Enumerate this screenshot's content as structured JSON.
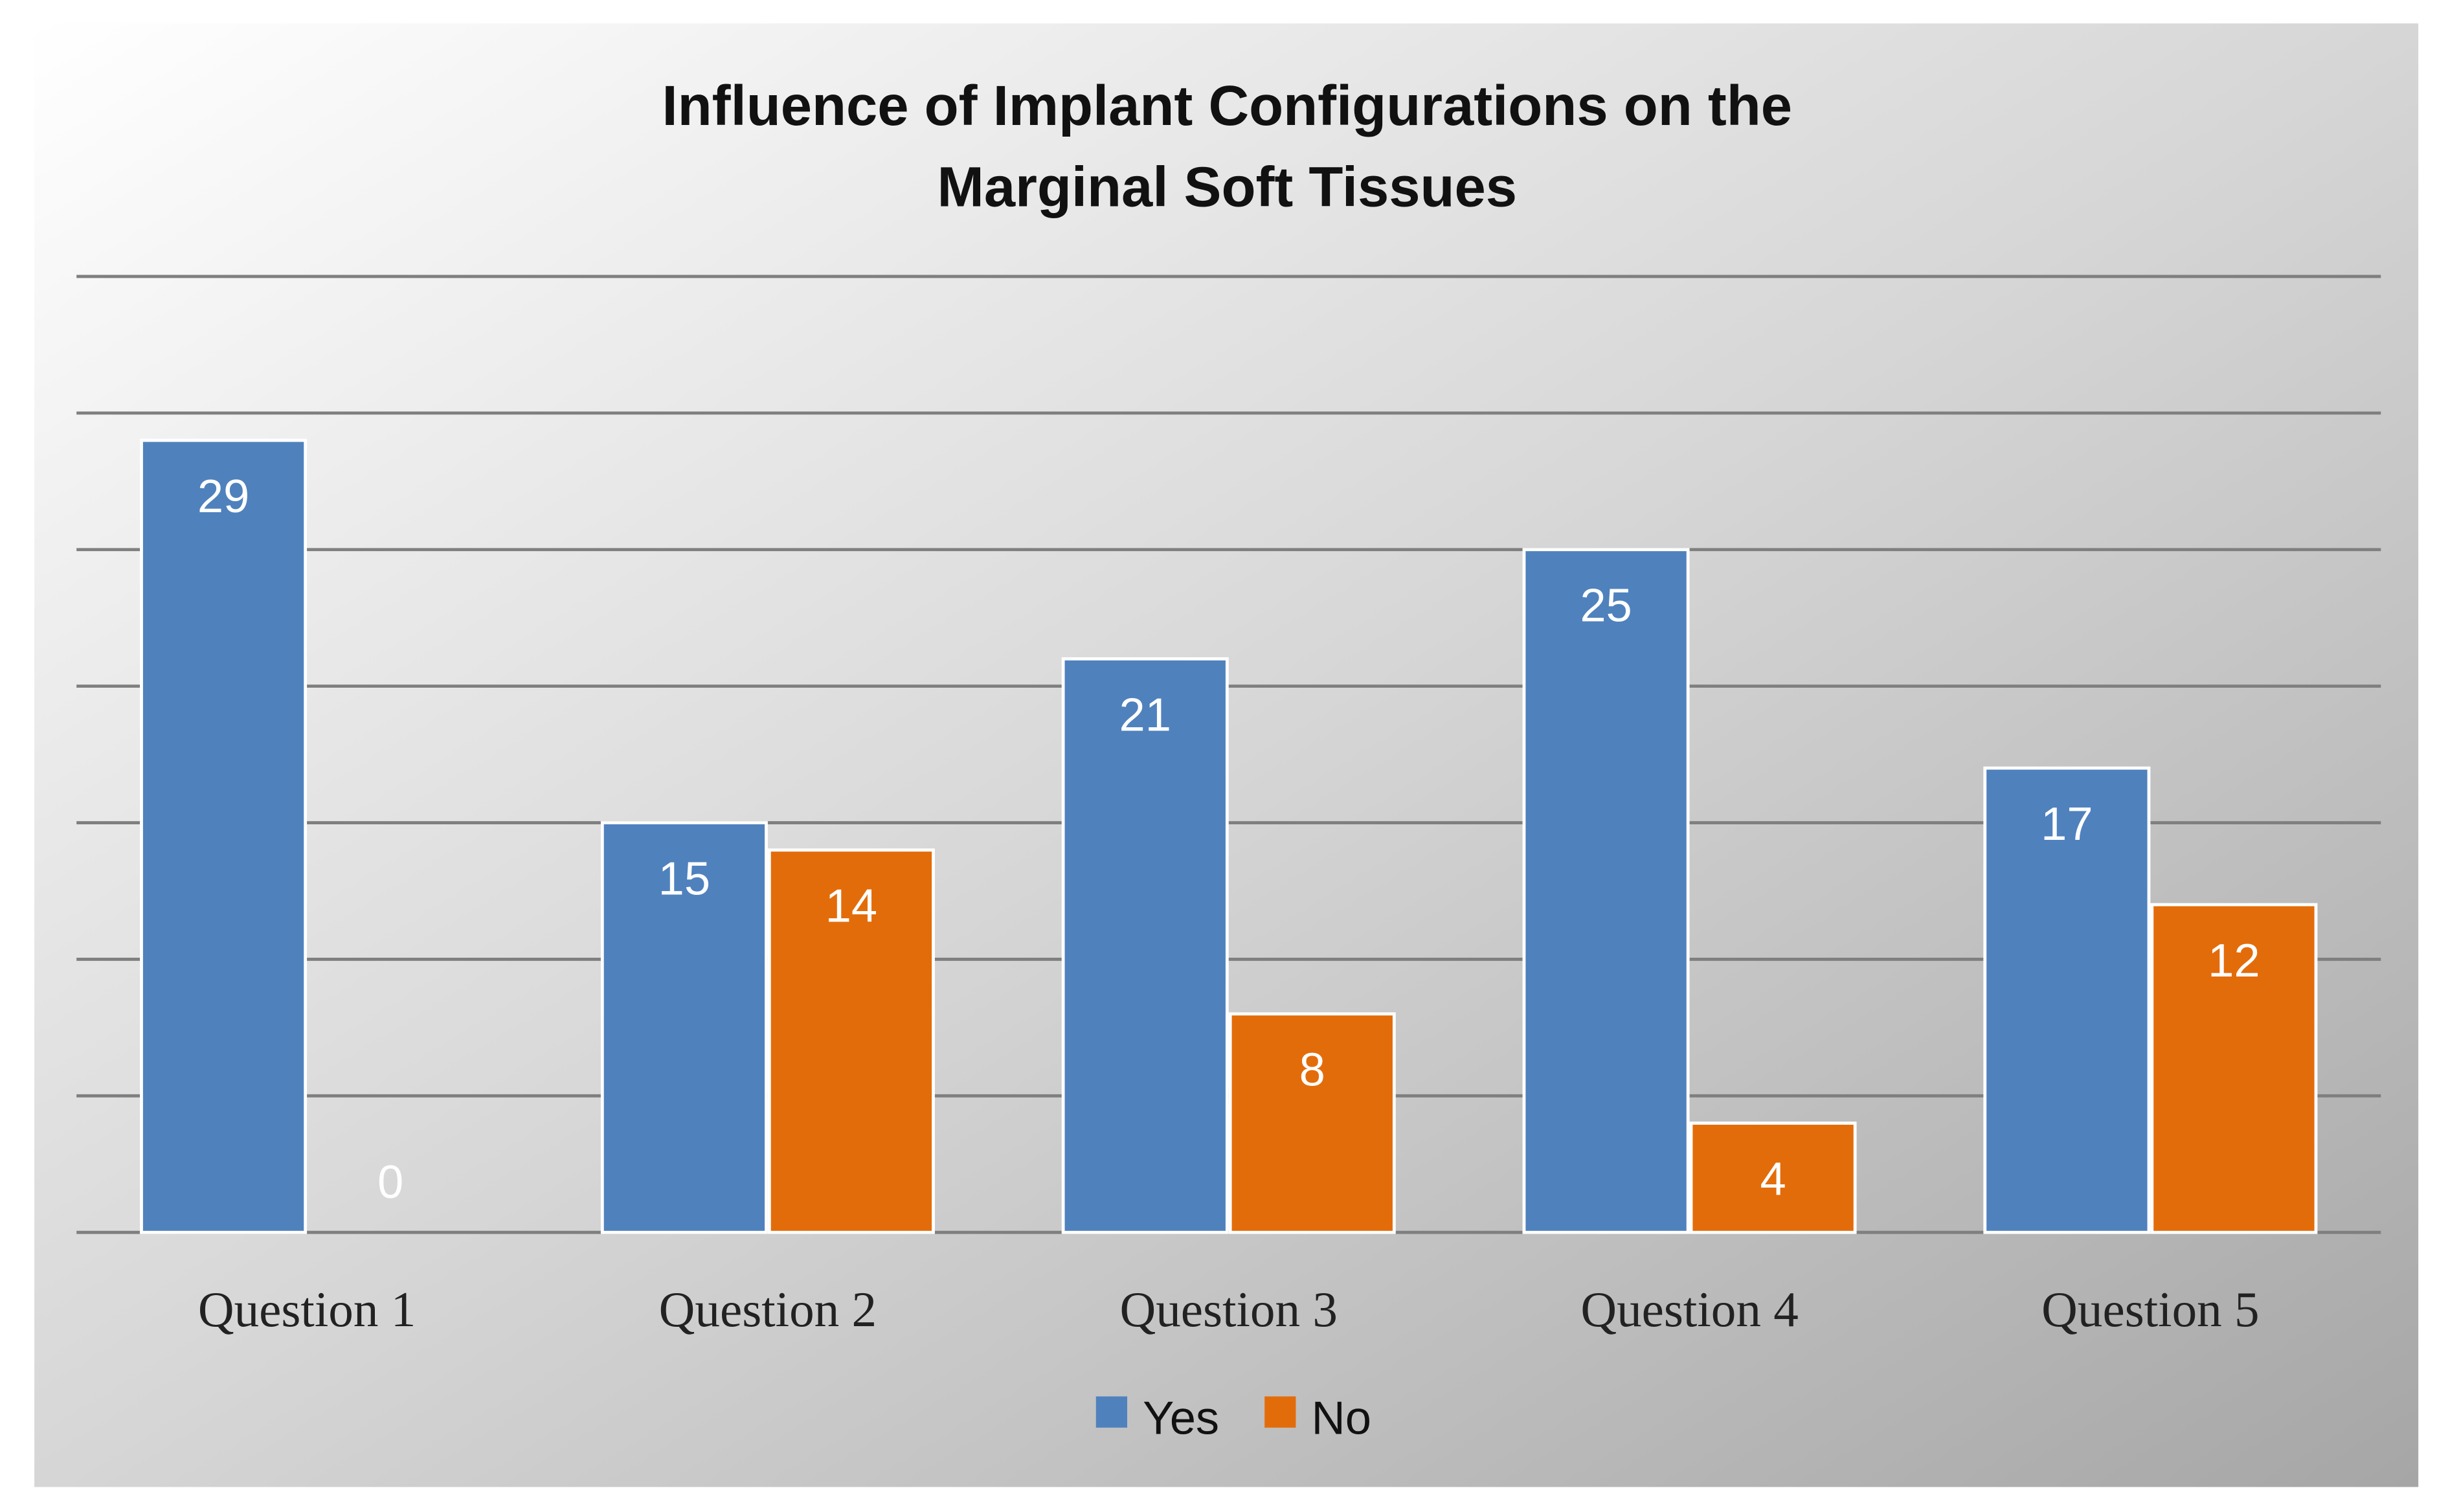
{
  "chart_data": {
    "type": "bar",
    "title": "Influence of Implant Configurations on the Marginal Soft Tissues",
    "title_lines": [
      "Influence of Implant Configurations on the",
      "Marginal Soft Tissues"
    ],
    "categories": [
      "Question 1",
      "Question 2",
      "Question 3",
      "Question 4",
      "Question 5"
    ],
    "series": [
      {
        "name": "Yes",
        "color": "#4f81bd",
        "values": [
          29,
          15,
          21,
          25,
          17
        ]
      },
      {
        "name": "No",
        "color": "#e36c0a",
        "values": [
          0,
          14,
          8,
          4,
          12
        ]
      }
    ],
    "xlabel": "",
    "ylabel": "",
    "ylim": [
      0,
      35
    ],
    "gridline_step": 5,
    "grid": true,
    "legend": "bottom-center",
    "data_labels": true
  }
}
